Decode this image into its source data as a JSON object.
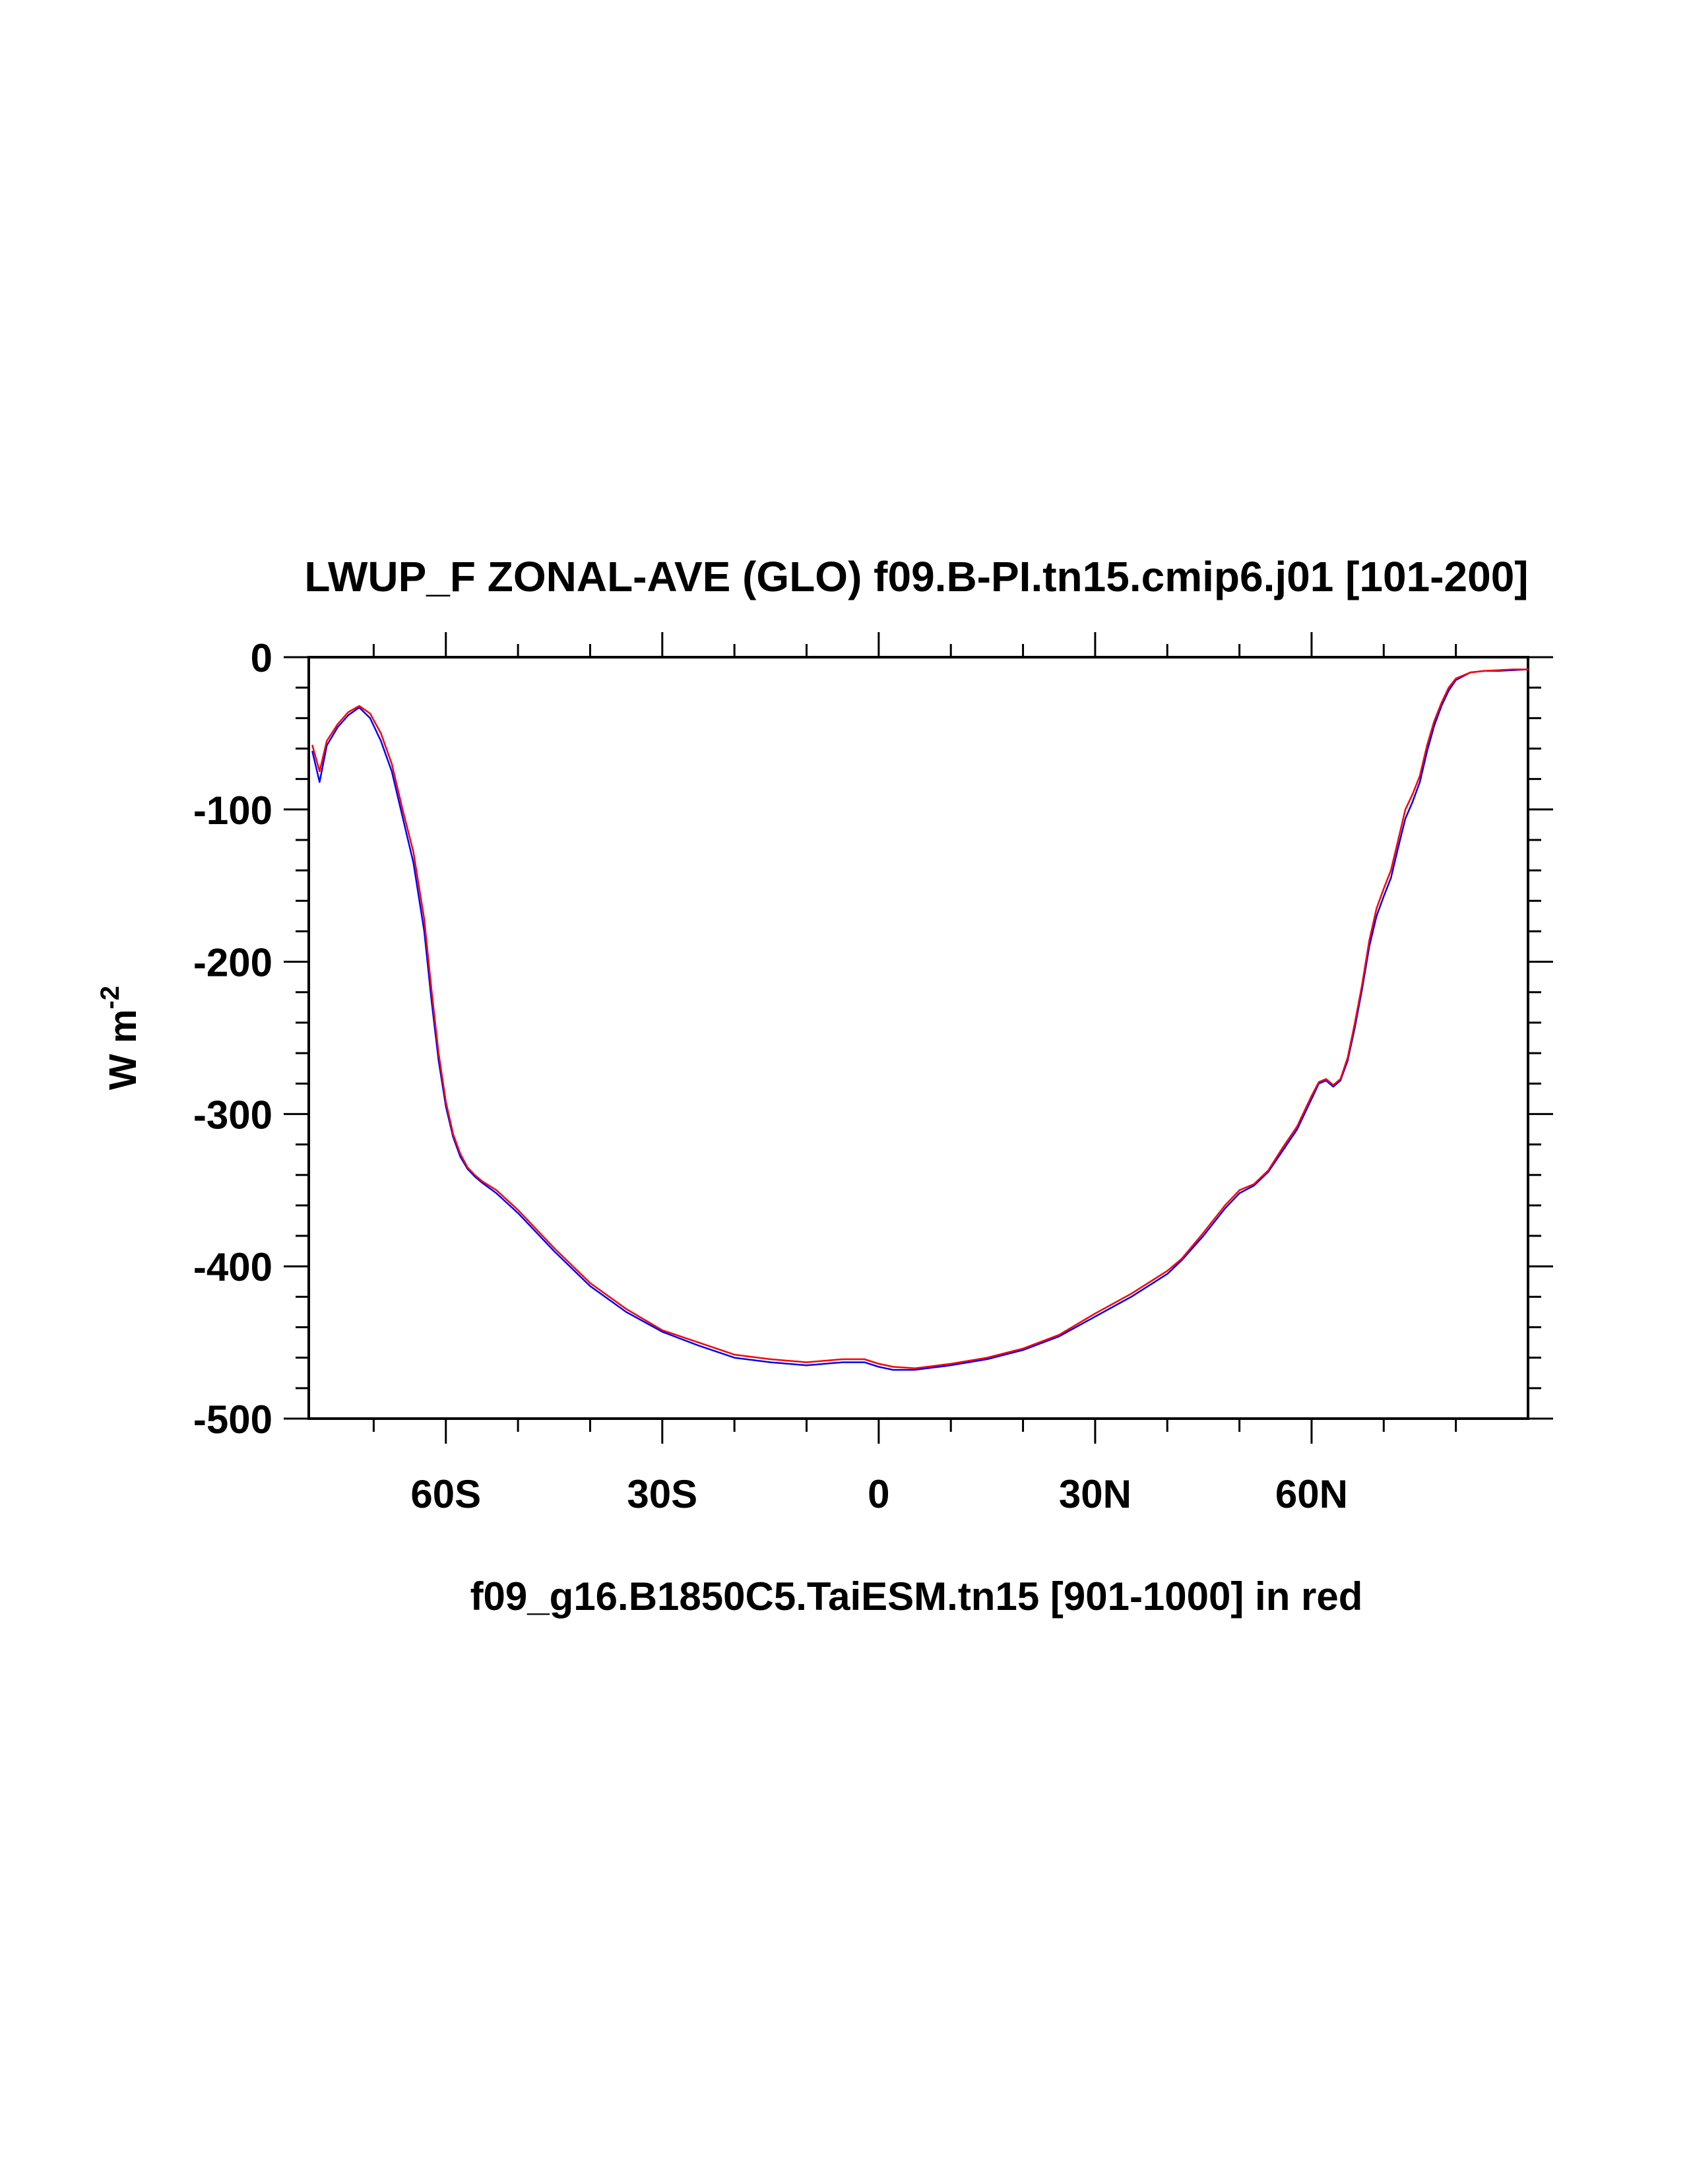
{
  "chart_data": {
    "type": "line",
    "title": "LWUP_F ZONAL-AVE (GLO) f09.B-PI.tn15.cmip6.j01 [101-200]",
    "xlabel": "f09_g16.B1850C5.TaiESM.tn15 [901-1000] in red",
    "ylabel": "W m",
    "ylabel_superscript": "-2",
    "xlim": [
      -79,
      90
    ],
    "ylim": [
      -500,
      0
    ],
    "x_ticks": [
      -60,
      -30,
      0,
      30,
      60
    ],
    "x_tick_labels": [
      "60S",
      "30S",
      "0",
      "30N",
      "60N"
    ],
    "y_ticks": [
      0,
      -100,
      -200,
      -300,
      -400,
      -500
    ],
    "y_tick_labels": [
      "0",
      "-100",
      "-200",
      "-300",
      "-400",
      "-500"
    ],
    "grid": false,
    "series": [
      {
        "color": "#0000ff",
        "x": [
          -78.5,
          -77.5,
          -76.5,
          -75,
          -73.5,
          -72,
          -70.5,
          -69,
          -67.5,
          -66,
          -64.5,
          -63,
          -62,
          -61,
          -60,
          -59,
          -58,
          -57,
          -56,
          -55,
          -53,
          -50,
          -45,
          -40,
          -35,
          -30,
          -25,
          -20,
          -15,
          -10,
          -5,
          -2,
          0,
          2,
          5,
          10,
          15,
          20,
          25,
          30,
          35,
          40,
          42,
          45,
          48,
          50,
          52,
          54,
          56,
          58,
          60,
          61,
          62,
          63,
          64,
          65,
          66,
          67,
          68,
          69,
          70,
          71,
          72,
          73,
          74,
          75,
          76,
          77,
          78,
          79,
          80,
          82,
          84,
          86,
          88,
          90
        ],
        "y": [
          -62,
          -82,
          -58,
          -46,
          -38,
          -33,
          -40,
          -55,
          -75,
          -105,
          -135,
          -180,
          -225,
          -265,
          -295,
          -315,
          -328,
          -336,
          -341,
          -345,
          -352,
          -365,
          -390,
          -413,
          -430,
          -443,
          -452,
          -460,
          -463,
          -465,
          -463,
          -463,
          -466,
          -468,
          -468,
          -465,
          -461,
          -455,
          -446,
          -433,
          -420,
          -405,
          -396,
          -380,
          -362,
          -352,
          -347,
          -338,
          -324,
          -310,
          -290,
          -280,
          -278,
          -282,
          -278,
          -265,
          -243,
          -218,
          -190,
          -170,
          -157,
          -145,
          -125,
          -106,
          -95,
          -82,
          -62,
          -45,
          -32,
          -22,
          -15,
          -10,
          -9,
          -9,
          -8.5,
          -8
        ],
        "line_width": 2.5
      },
      {
        "color": "#ff0000",
        "x": [
          -78.5,
          -77.5,
          -76.5,
          -75,
          -73.5,
          -72,
          -70.5,
          -69,
          -67.5,
          -66,
          -64.5,
          -63,
          -62,
          -61,
          -60,
          -59,
          -58,
          -57,
          -56,
          -55,
          -53,
          -50,
          -45,
          -40,
          -35,
          -30,
          -25,
          -20,
          -15,
          -10,
          -5,
          -2,
          0,
          2,
          5,
          10,
          15,
          20,
          25,
          30,
          35,
          40,
          42,
          45,
          48,
          50,
          52,
          54,
          56,
          58,
          60,
          61,
          62,
          63,
          64,
          65,
          66,
          67,
          68,
          69,
          70,
          71,
          72,
          73,
          74,
          75,
          76,
          77,
          78,
          79,
          80,
          82,
          84,
          86,
          88,
          90
        ],
        "y": [
          -58,
          -75,
          -55,
          -44,
          -36,
          -32,
          -37,
          -50,
          -70,
          -100,
          -128,
          -172,
          -218,
          -260,
          -292,
          -313,
          -326,
          -335,
          -340,
          -344,
          -350,
          -363,
          -388,
          -411,
          -428,
          -442,
          -450,
          -458,
          -461,
          -463,
          -461,
          -461,
          -464,
          -466,
          -467,
          -464,
          -460,
          -454,
          -445,
          -431,
          -418,
          -403,
          -395,
          -378,
          -360,
          -350,
          -346,
          -337,
          -322,
          -308,
          -288,
          -279,
          -277,
          -281,
          -277,
          -263,
          -240,
          -215,
          -186,
          -165,
          -152,
          -140,
          -120,
          -100,
          -90,
          -78,
          -58,
          -42,
          -30,
          -20,
          -14,
          -10,
          -9,
          -8.5,
          -8,
          -8
        ],
        "line_width": 2.5
      }
    ]
  }
}
